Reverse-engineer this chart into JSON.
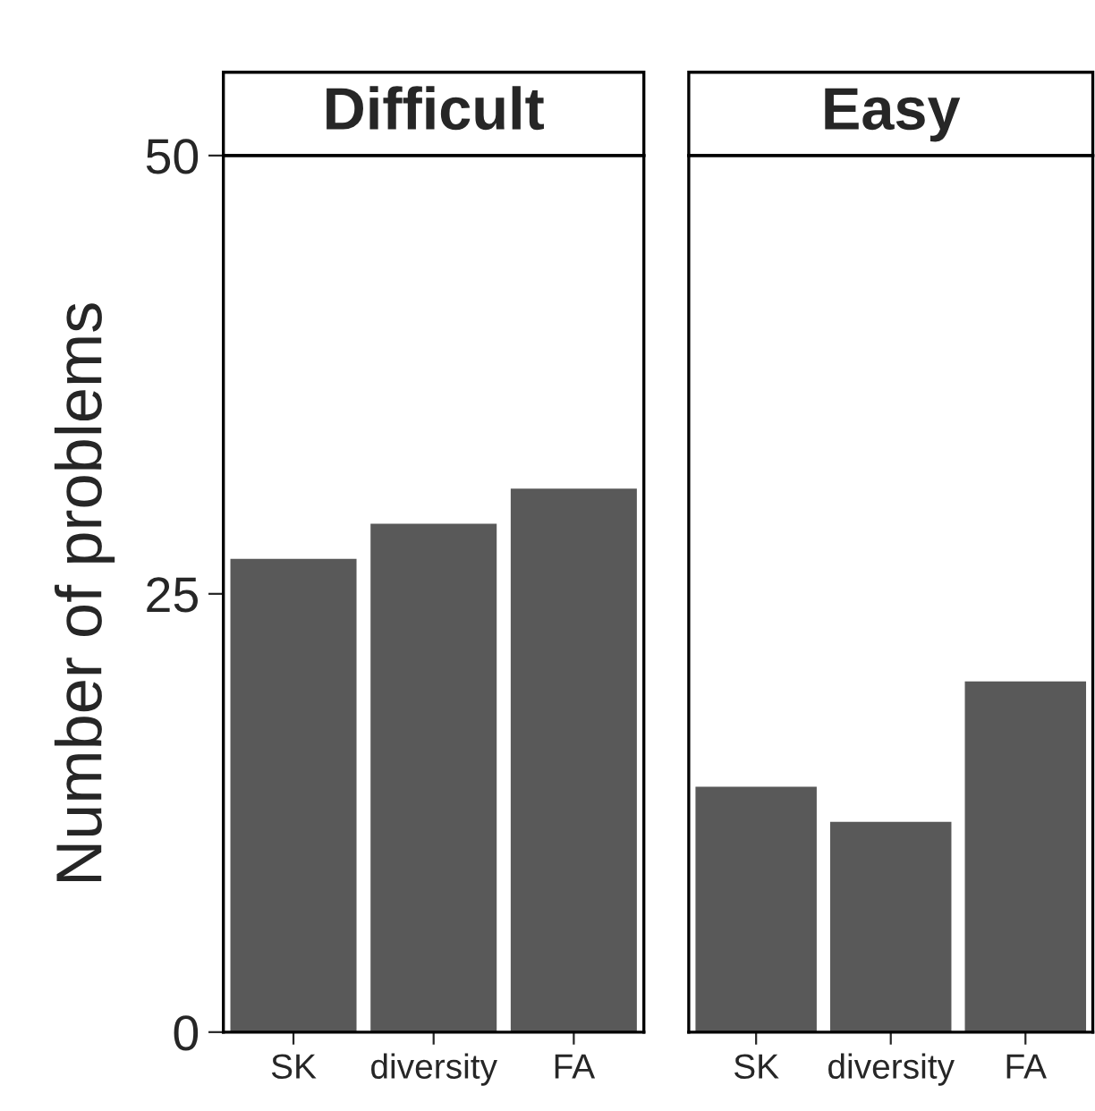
{
  "chart_data": [
    {
      "type": "bar",
      "title": "Difficult",
      "ylabel": "Number of problems",
      "categories": [
        "SK",
        "diversity",
        "FA"
      ],
      "values": [
        27,
        29,
        31
      ],
      "color": "#595959",
      "ylim": [
        0,
        50
      ],
      "yticks": [
        0,
        25,
        50
      ],
      "grid": false
    },
    {
      "type": "bar",
      "title": "Easy",
      "categories": [
        "SK",
        "diversity",
        "FA"
      ],
      "values": [
        14,
        12,
        20
      ],
      "color": "#595959",
      "ylim": [
        0,
        50
      ],
      "yticks": [
        0,
        25,
        50
      ],
      "grid": false,
      "tick_labels": "x"
    }
  ]
}
